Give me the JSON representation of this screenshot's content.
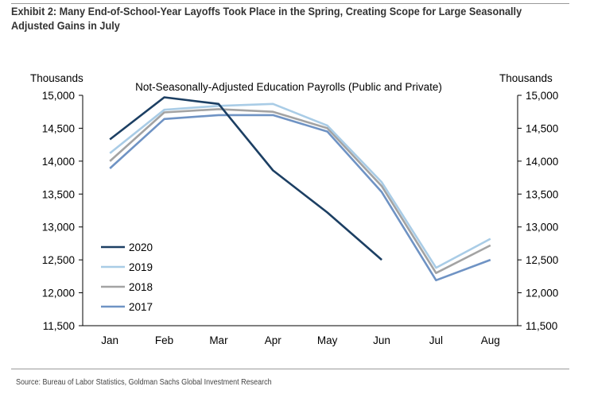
{
  "header": {
    "title": "Exhibit 2: Many End-of-School-Year Layoffs Took Place in the Spring, Creating Scope for Large Seasonally Adjusted Gains in July"
  },
  "footer": {
    "source": "Source: Bureau of Labor Statistics, Goldman Sachs Global Investment Research"
  },
  "colors": {
    "2020": "#1c3f63",
    "2019": "#a9cce6",
    "2018": "#a3a3a3",
    "2017": "#6f93c4",
    "axis": "#000000"
  },
  "chart_data": {
    "type": "line",
    "title": "Not-Seasonally-Adjusted Education Payrolls (Public and Private)",
    "ylabel_left": "Thousands",
    "ylabel_right": "Thousands",
    "categories": [
      "Jan",
      "Feb",
      "Mar",
      "Apr",
      "May",
      "Jun",
      "Jul",
      "Aug"
    ],
    "ylim": [
      11500,
      15000
    ],
    "yticks": [
      11500,
      12000,
      12500,
      13000,
      13500,
      14000,
      14500,
      15000
    ],
    "ytick_labels": [
      "11,500",
      "12,000",
      "12,500",
      "13,000",
      "13,500",
      "14,000",
      "14,500",
      "15,000"
    ],
    "grid": false,
    "legend_position": "bottom-left",
    "series": [
      {
        "name": "2020",
        "color": "#1c3f63",
        "values": [
          14330,
          14970,
          14870,
          13860,
          13220,
          12500,
          null,
          null
        ]
      },
      {
        "name": "2019",
        "color": "#a9cce6",
        "values": [
          14120,
          14780,
          14840,
          14870,
          14540,
          13680,
          12380,
          12820
        ]
      },
      {
        "name": "2018",
        "color": "#a3a3a3",
        "values": [
          14000,
          14740,
          14790,
          14750,
          14500,
          13620,
          12300,
          12720
        ]
      },
      {
        "name": "2017",
        "color": "#6f93c4",
        "values": [
          13890,
          14640,
          14700,
          14700,
          14450,
          13530,
          12190,
          12500
        ]
      }
    ]
  }
}
